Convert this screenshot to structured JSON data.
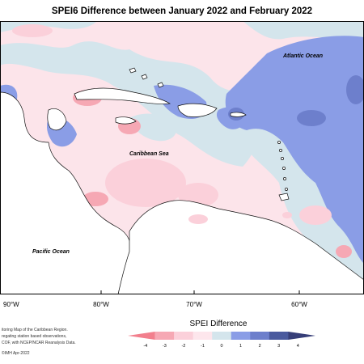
{
  "title": "SPEI6 Difference between January 2022 and February 2022",
  "map": {
    "labels": {
      "atlantic": "Atlantic Ocean",
      "caribbean": "Caribbean Sea",
      "pacific": "Pacific Ocean"
    }
  },
  "axis": {
    "lon_90": "90°W",
    "lon_80": "80°W",
    "lon_70": "70°W",
    "lon_60": "60°W"
  },
  "notes": {
    "line1": "itoring Map of the Caribbean Region.",
    "line2": "regating station based observations,",
    "line3": "COF, with NCEP/NCAR Reanalysis Data.",
    "credit": "©IMH Apr-2022"
  },
  "legend": {
    "title": "SPEI Difference",
    "ticks": [
      "-4",
      "-3",
      "-2",
      "-1",
      "0",
      "1",
      "2",
      "3",
      "4"
    ],
    "colors": [
      "#f27f8d",
      "#f6a8b4",
      "#fbd0da",
      "#fde6ec",
      "#d4e5ec",
      "#8a9de6",
      "#6d7fcc",
      "#4a5a9e",
      "#363e78"
    ]
  }
}
